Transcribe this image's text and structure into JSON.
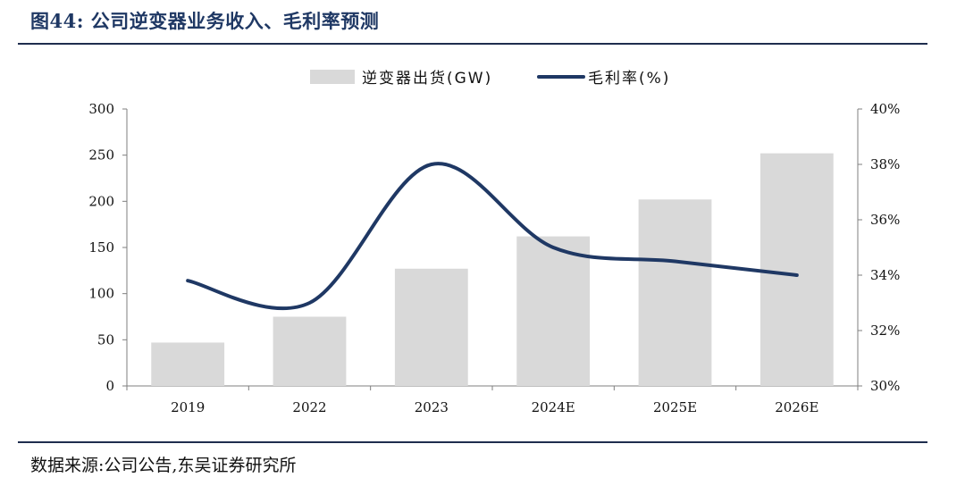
{
  "title": "图44:  公司逆变器业务收入、毛利率预测",
  "source": "数据来源:公司公告,东吴证券研究所",
  "chart_data": {
    "type": "bar",
    "categories": [
      "2019",
      "2022",
      "2023",
      "2024E",
      "2025E",
      "2026E"
    ],
    "series": [
      {
        "name": "逆变器出货(GW)",
        "type": "bar",
        "axis": "left",
        "values": [
          47,
          75,
          127,
          162,
          202,
          252
        ],
        "color": "#d9d9d9"
      },
      {
        "name": "毛利率(%)",
        "type": "line",
        "smooth": true,
        "axis": "right",
        "values": [
          33.8,
          33.0,
          38.0,
          35.0,
          34.5,
          34.0
        ],
        "color": "#1f3864"
      }
    ],
    "y_left": {
      "min": 0,
      "max": 300,
      "ticks": [
        "0",
        "50",
        "100",
        "150",
        "200",
        "250",
        "300"
      ]
    },
    "y_right": {
      "min": 30,
      "max": 40,
      "ticks": [
        "30%",
        "32%",
        "34%",
        "36%",
        "38%",
        "40%"
      ]
    },
    "legend": "top-center",
    "grid": false
  }
}
